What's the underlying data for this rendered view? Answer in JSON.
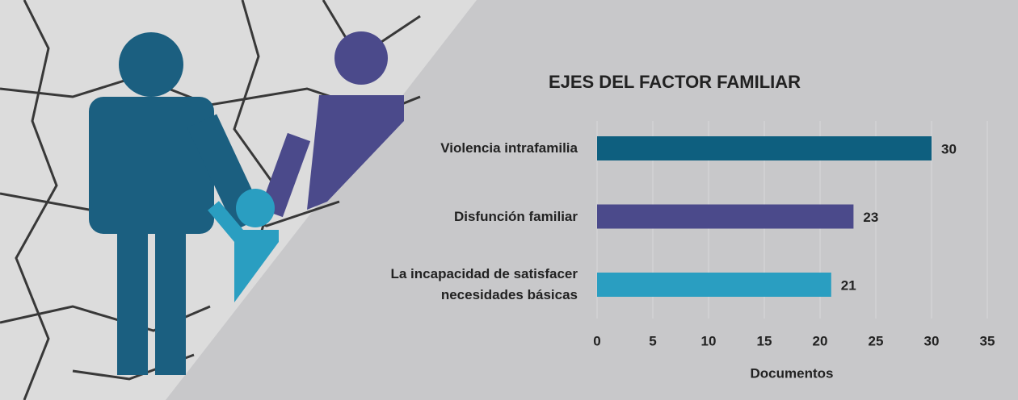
{
  "chart_data": {
    "type": "barh",
    "title": "EJES DEL FACTOR FAMILIAR",
    "categories": [
      "Violencia intrafamilia",
      "Disfunción familiar",
      "La incapacidad de satisfacer\nnecesidades básicas"
    ],
    "values": [
      30,
      23,
      21
    ],
    "colors": [
      "#0e5f7f",
      "#4b4a8b",
      "#2a9ec1"
    ],
    "xlabel": "Documentos",
    "xlim": [
      0,
      35
    ],
    "xticks": [
      0,
      5,
      10,
      15,
      20,
      25,
      30,
      35
    ],
    "grid": true
  }
}
